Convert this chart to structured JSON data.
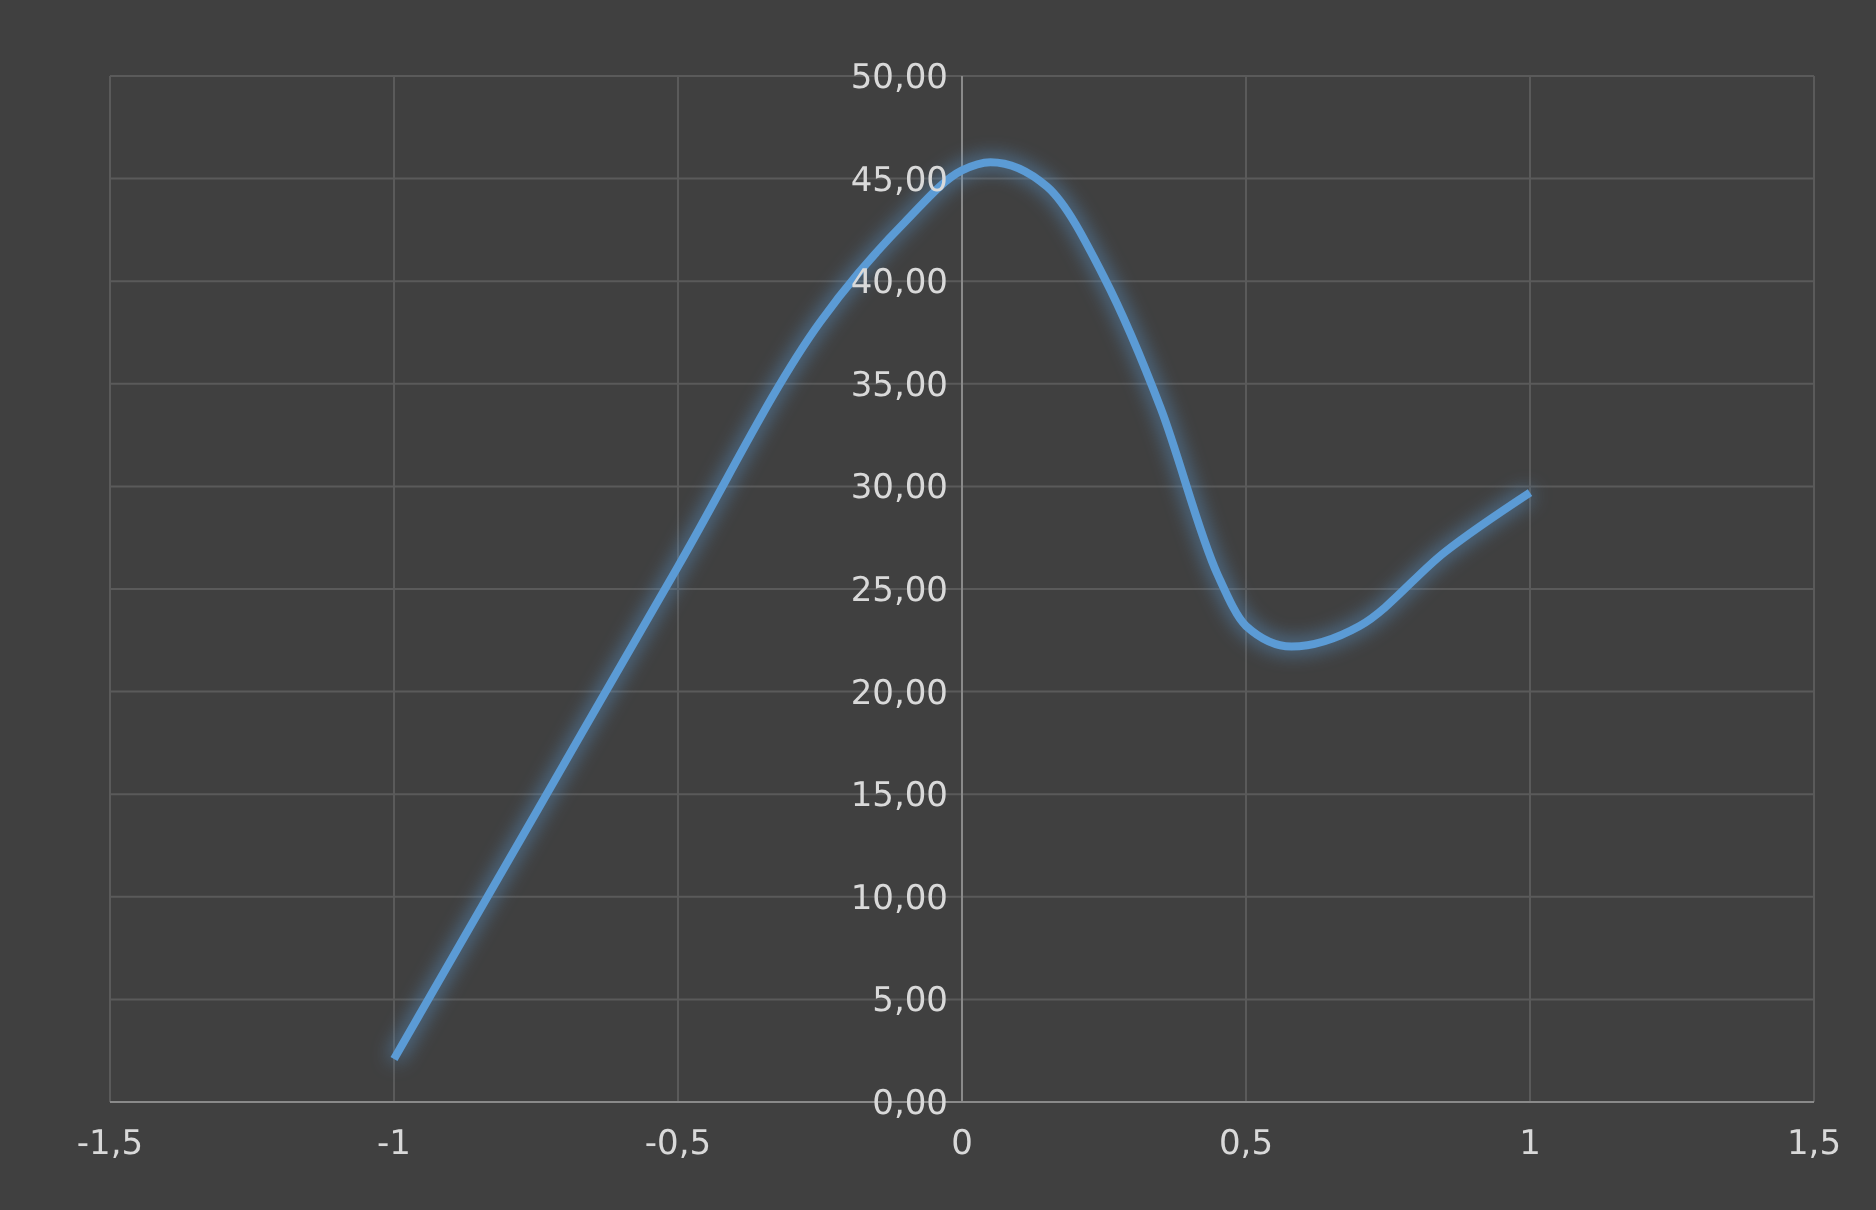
{
  "chart_data": {
    "type": "line",
    "x": [
      -1,
      -0.75,
      -0.5,
      -0.25,
      -0.1,
      0,
      0.05,
      0.15,
      0.25,
      0.35,
      0.45,
      0.5,
      0.58,
      0.7,
      0.85,
      1
    ],
    "series": [
      {
        "color": "#5b9bd5",
        "values": [
          2.1,
          14.1,
          26.1,
          38.0,
          42.9,
          45.4,
          45.8,
          44.6,
          40.2,
          33.8,
          25.7,
          23.2,
          22.2,
          23.2,
          26.8,
          29.7
        ]
      }
    ],
    "xlim": [
      -1.5,
      1.5
    ],
    "xticks": [
      {
        "value": -1.5,
        "label": "-1,5"
      },
      -1,
      {
        "value": -0.5,
        "label": "-0,5"
      },
      0,
      {
        "value": 0.5,
        "label": "0,5"
      },
      1,
      {
        "value": 1.5,
        "label": "1,5"
      }
    ],
    "ylim": [
      0,
      50
    ],
    "yticks": [
      {
        "value": 0,
        "label": "0,00"
      },
      {
        "value": 5,
        "label": "5,00"
      },
      {
        "value": 10,
        "label": "10,00"
      },
      {
        "value": 15,
        "label": "15,00"
      },
      {
        "value": 20,
        "label": "20,00"
      },
      {
        "value": 25,
        "label": "25,00"
      },
      {
        "value": 30,
        "label": "30,00"
      },
      {
        "value": 35,
        "label": "35,00"
      },
      {
        "value": 40,
        "label": "40,00"
      },
      {
        "value": 45,
        "label": "45,00"
      },
      {
        "value": 50,
        "label": "50,00"
      }
    ],
    "grid": true,
    "marker": "none",
    "line_style": "solid",
    "legend": false
  }
}
